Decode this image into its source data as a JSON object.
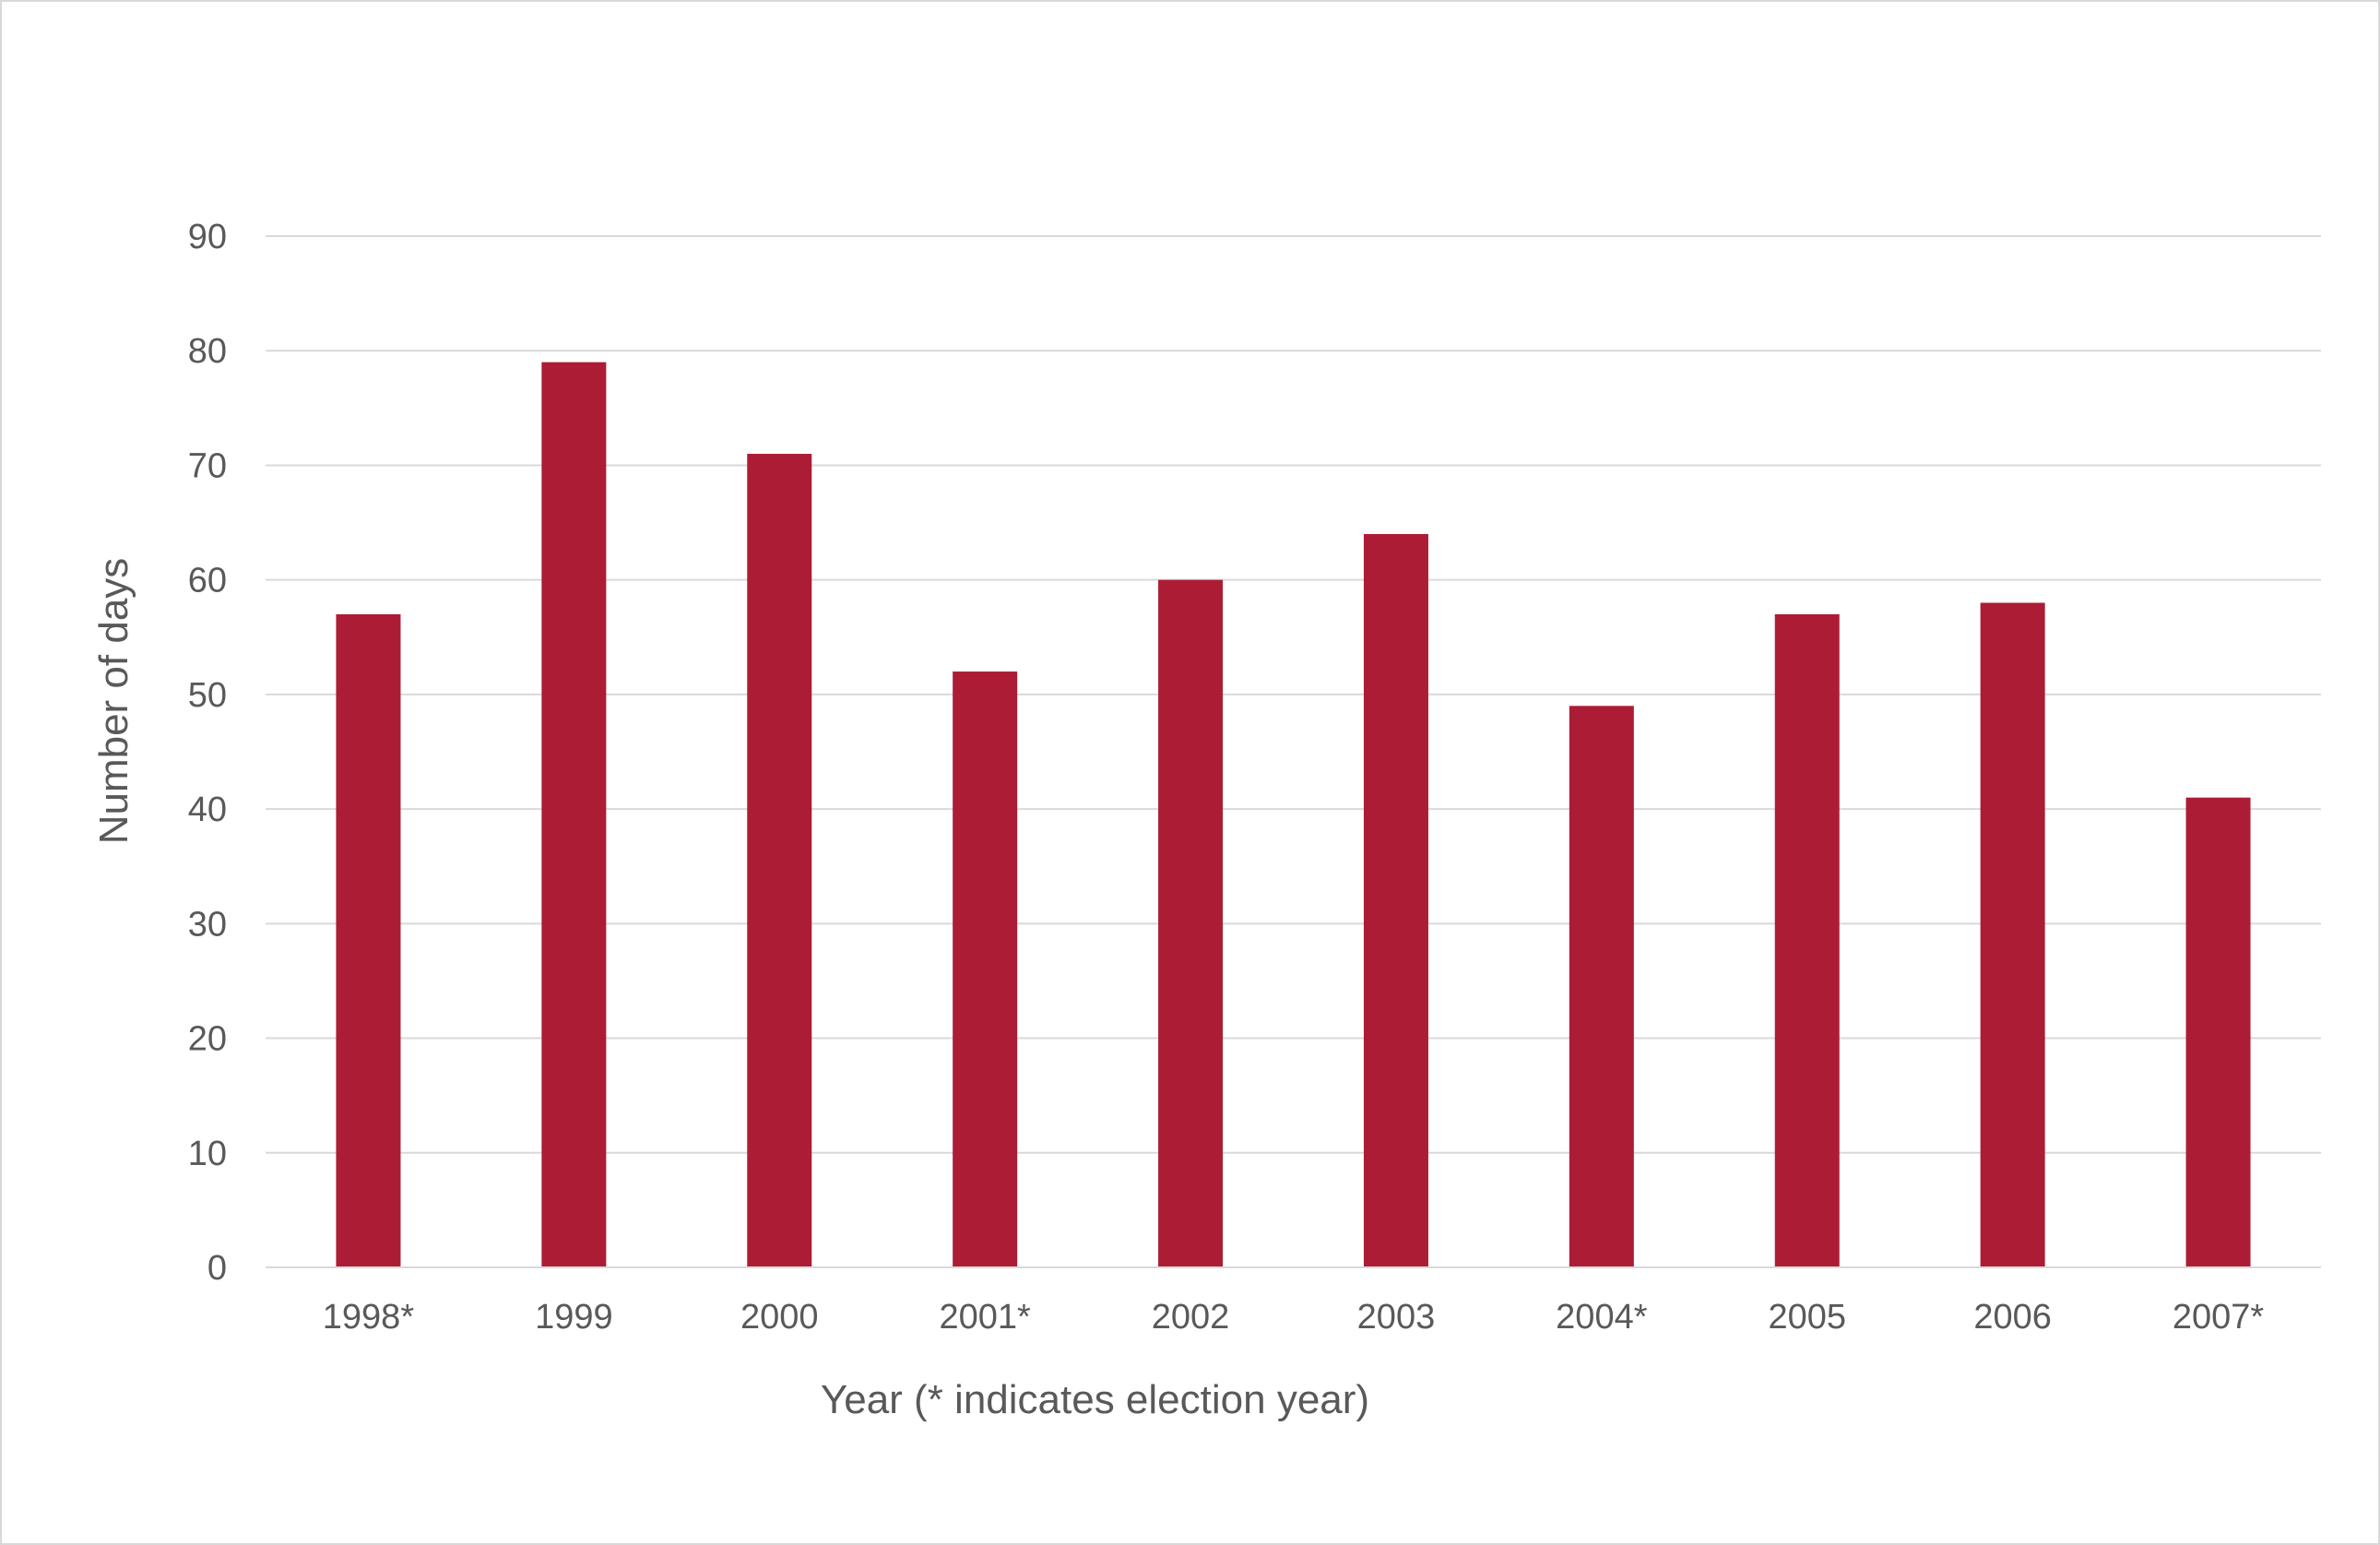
{
  "chart_data": {
    "type": "bar",
    "categories": [
      "1998*",
      "1999",
      "2000",
      "2001*",
      "2002",
      "2003",
      "2004*",
      "2005",
      "2006",
      "2007*"
    ],
    "values": [
      57,
      79,
      71,
      52,
      60,
      64,
      49,
      57,
      58,
      41
    ],
    "title": "",
    "xlabel": "Year (* indicates election year)",
    "ylabel": "Number of days",
    "ylim": [
      0,
      90
    ],
    "yticks": [
      0,
      10,
      20,
      30,
      40,
      50,
      60,
      70,
      80,
      90
    ],
    "grid": true,
    "legend": "none",
    "bar_color": "#ad1c35",
    "grid_color": "#d9d9d9",
    "text_color": "#595959"
  }
}
